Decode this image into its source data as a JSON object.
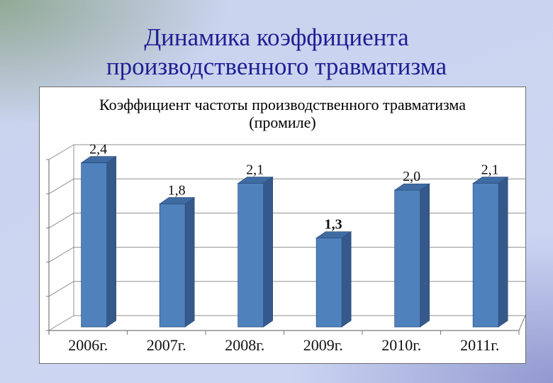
{
  "slide": {
    "title_lines": [
      "Динамика коэффициента",
      "производственного травматизма"
    ]
  },
  "chart_data": {
    "type": "bar",
    "title": "Коэффициент частоты производственного травматизма (промиле)",
    "title_lines": [
      "Коэффициент частоты производственного травматизма",
      "(промиле)"
    ],
    "categories": [
      "2006г.",
      "2007г.",
      "2008г.",
      "2009г.",
      "2010г.",
      "2011г."
    ],
    "values": [
      2.4,
      1.8,
      2.1,
      1.3,
      2.0,
      2.1
    ],
    "value_labels": [
      "2,4",
      "1,8",
      "2,1",
      "1,3",
      "2,0",
      "2,1"
    ],
    "bold_value_labels": [
      false,
      false,
      false,
      true,
      false,
      false
    ],
    "xlabel": "",
    "ylabel": "",
    "ylim": [
      0,
      2.5
    ],
    "grid_step": 0.5,
    "grid": true,
    "legend": false,
    "style": "3d-column",
    "colors": {
      "bar_front": "#4f81bd",
      "bar_side": "#36598c",
      "bar_top": "#3f6ba3",
      "bar_outline": "#2a4d79",
      "grid": "#8f8f8f",
      "axis": "#7a7a7a",
      "wall": "#ffffff",
      "text": "#111111",
      "slide_title": "#1f1f94"
    }
  }
}
